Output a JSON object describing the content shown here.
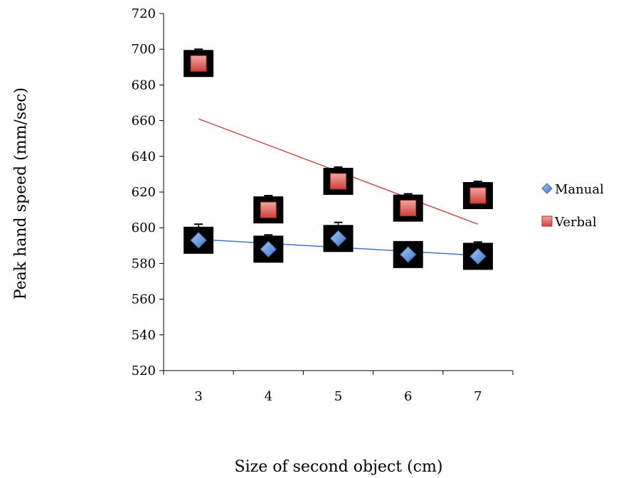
{
  "chart_data": {
    "type": "scatter",
    "title": "",
    "xlabel": "Size of second object (cm)",
    "ylabel": "Peak hand speed (mm/sec)",
    "categories": [
      3,
      4,
      5,
      6,
      7
    ],
    "ylim": [
      520,
      720
    ],
    "yticks": [
      520,
      540,
      560,
      580,
      600,
      620,
      640,
      660,
      680,
      700,
      720
    ],
    "grid": false,
    "legend_position": "right",
    "series": [
      {
        "name": "Manual",
        "values": [
          593,
          588,
          594,
          585,
          584
        ],
        "error": [
          9,
          8,
          9,
          7,
          8
        ],
        "marker": "diamond",
        "color": "#5b8fd6",
        "trendline": {
          "color": "#4472c4",
          "from": 593.5,
          "to": 584.5
        }
      },
      {
        "name": "Verbal",
        "values": [
          692,
          610,
          626,
          611,
          618
        ],
        "error": [
          8,
          8,
          8,
          8,
          8
        ],
        "marker": "square",
        "color": "#e05656",
        "trendline": {
          "color": "#c0504d",
          "from": 661,
          "to": 602
        }
      }
    ]
  }
}
